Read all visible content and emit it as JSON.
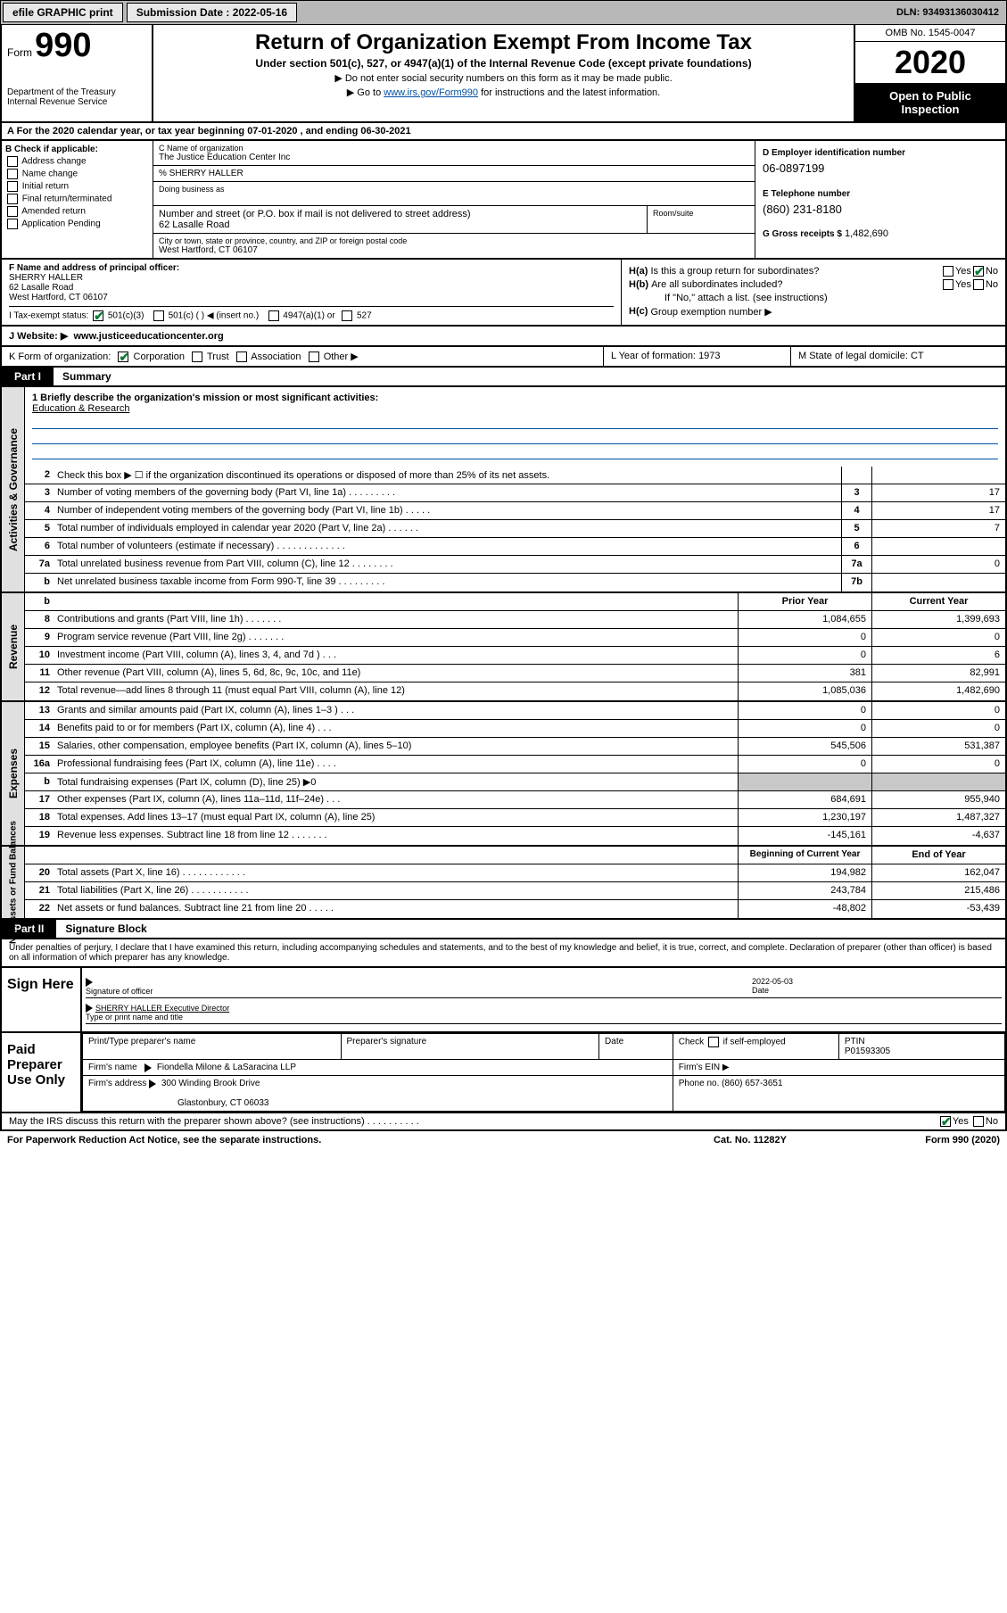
{
  "topbar": {
    "efile": "efile GRAPHIC print",
    "submission_label": "Submission Date : 2022-05-16",
    "dln": "DLN: 93493136030412"
  },
  "header": {
    "form_label": "Form",
    "form_number": "990",
    "dept": "Department of the Treasury\nInternal Revenue Service",
    "title": "Return of Organization Exempt From Income Tax",
    "subtitle": "Under section 501(c), 527, or 4947(a)(1) of the Internal Revenue Code (except private foundations)",
    "note1": "▶ Do not enter social security numbers on this form as it may be made public.",
    "note2_pre": "▶ Go to ",
    "note2_link": "www.irs.gov/Form990",
    "note2_post": " for instructions and the latest information.",
    "omb": "OMB No. 1545-0047",
    "year": "2020",
    "inspection": "Open to Public Inspection"
  },
  "period": "A For the 2020 calendar year, or tax year beginning 07-01-2020    , and ending 06-30-2021",
  "box_b": {
    "label": "B Check if applicable:",
    "items": [
      "Address change",
      "Name change",
      "Initial return",
      "Final return/terminated",
      "Amended return",
      "Application Pending"
    ]
  },
  "box_c": {
    "name_lbl": "C Name of organization",
    "name": "The Justice Education Center Inc",
    "care_of": "% SHERRY HALLER",
    "dba_lbl": "Doing business as",
    "street_lbl": "Number and street (or P.O. box if mail is not delivered to street address)",
    "suite_lbl": "Room/suite",
    "street": "62 Lasalle Road",
    "city_lbl": "City or town, state or province, country, and ZIP or foreign postal code",
    "city": "West Hartford, CT  06107"
  },
  "box_d": {
    "ein_lbl": "D Employer identification number",
    "ein": "06-0897199",
    "phone_lbl": "E Telephone number",
    "phone": "(860) 231-8180",
    "gross_lbl": "G Gross receipts $",
    "gross": "1,482,690"
  },
  "box_f": {
    "lbl": "F Name and address of principal officer:",
    "name": "SHERRY HALLER",
    "addr1": "62 Lasalle Road",
    "addr2": "West Hartford, CT  06107"
  },
  "box_h": {
    "ha": "Is this a group return for subordinates?",
    "hb": "Are all subordinates included?",
    "hb_note": "If \"No,\" attach a list. (see instructions)",
    "hc": "Group exemption number ▶"
  },
  "row_i": {
    "label": "I   Tax-exempt status:",
    "opts": [
      "501(c)(3)",
      "501(c) (  ) ◀ (insert no.)",
      "4947(a)(1) or",
      "527"
    ]
  },
  "row_j": {
    "label": "J   Website: ▶",
    "url": "www.justiceeducationcenter.org"
  },
  "row_k": {
    "form_org": "K Form of organization:",
    "opts": [
      "Corporation",
      "Trust",
      "Association",
      "Other ▶"
    ],
    "year_lbl": "L Year of formation:",
    "year": "1973",
    "state_lbl": "M State of legal domicile:",
    "state": "CT"
  },
  "part1": {
    "num": "Part I",
    "title": "Summary"
  },
  "mission": {
    "q": "1  Briefly describe the organization's mission or most significant activities:",
    "ans": "Education & Research"
  },
  "gov_lines": [
    {
      "n": "2",
      "d": "Check this box ▶ ☐  if the organization discontinued its operations or disposed of more than 25% of its net assets.",
      "c": "",
      "v": ""
    },
    {
      "n": "3",
      "d": "Number of voting members of the governing body (Part VI, line 1a)   .    .    .    .    .    .    .    .    .",
      "c": "3",
      "v": "17"
    },
    {
      "n": "4",
      "d": "Number of independent voting members of the governing body (Part VI, line 1b)   .    .    .    .    .",
      "c": "4",
      "v": "17"
    },
    {
      "n": "5",
      "d": "Total number of individuals employed in calendar year 2020 (Part V, line 2a)   .    .    .    .    .    .",
      "c": "5",
      "v": "7"
    },
    {
      "n": "6",
      "d": "Total number of volunteers (estimate if necessary)    .    .    .    .    .    .    .    .    .    .    .    .    .",
      "c": "6",
      "v": ""
    },
    {
      "n": "7a",
      "d": "Total unrelated business revenue from Part VIII, column (C), line 12   .    .    .    .    .    .    .    .",
      "c": "7a",
      "v": "0"
    },
    {
      "n": "b",
      "d": "Net unrelated business taxable income from Form 990-T, line 39    .    .    .    .    .    .    .    .    .",
      "c": "7b",
      "v": ""
    }
  ],
  "rev_hdr": {
    "py": "Prior Year",
    "cy": "Current Year"
  },
  "rev_lines": [
    {
      "n": "8",
      "d": "Contributions and grants (Part VIII, line 1h)    .    .    .    .    .    .    .",
      "py": "1,084,655",
      "cy": "1,399,693"
    },
    {
      "n": "9",
      "d": "Program service revenue (Part VIII, line 2g)    .    .    .    .    .    .    .",
      "py": "0",
      "cy": "0"
    },
    {
      "n": "10",
      "d": "Investment income (Part VIII, column (A), lines 3, 4, and 7d )    .    .    .",
      "py": "0",
      "cy": "6"
    },
    {
      "n": "11",
      "d": "Other revenue (Part VIII, column (A), lines 5, 6d, 8c, 9c, 10c, and 11e)",
      "py": "381",
      "cy": "82,991"
    },
    {
      "n": "12",
      "d": "Total revenue—add lines 8 through 11 (must equal Part VIII, column (A), line 12)",
      "py": "1,085,036",
      "cy": "1,482,690"
    }
  ],
  "exp_lines": [
    {
      "n": "13",
      "d": "Grants and similar amounts paid (Part IX, column (A), lines 1–3 )    .    .    .",
      "py": "0",
      "cy": "0"
    },
    {
      "n": "14",
      "d": "Benefits paid to or for members (Part IX, column (A), line 4)    .    .    .",
      "py": "0",
      "cy": "0"
    },
    {
      "n": "15",
      "d": "Salaries, other compensation, employee benefits (Part IX, column (A), lines 5–10)",
      "py": "545,506",
      "cy": "531,387"
    },
    {
      "n": "16a",
      "d": "Professional fundraising fees (Part IX, column (A), line 11e)    .    .    .    .",
      "py": "0",
      "cy": "0"
    },
    {
      "n": "b",
      "d": "Total fundraising expenses (Part IX, column (D), line 25) ▶0",
      "py": "grey",
      "cy": "grey"
    },
    {
      "n": "17",
      "d": "Other expenses (Part IX, column (A), lines 11a–11d, 11f–24e)    .    .    .",
      "py": "684,691",
      "cy": "955,940"
    },
    {
      "n": "18",
      "d": "Total expenses. Add lines 13–17 (must equal Part IX, column (A), line 25)",
      "py": "1,230,197",
      "cy": "1,487,327"
    },
    {
      "n": "19",
      "d": "Revenue less expenses. Subtract line 18 from line 12   .    .    .    .    .    .    .",
      "py": "-145,161",
      "cy": "-4,637"
    }
  ],
  "net_hdr": {
    "py": "Beginning of Current Year",
    "cy": "End of Year"
  },
  "net_lines": [
    {
      "n": "20",
      "d": "Total assets (Part X, line 16)    .    .    .    .    .    .    .    .    .    .    .    .",
      "py": "194,982",
      "cy": "162,047"
    },
    {
      "n": "21",
      "d": "Total liabilities (Part X, line 26)   .    .    .    .    .    .    .    .    .    .    .",
      "py": "243,784",
      "cy": "215,486"
    },
    {
      "n": "22",
      "d": "Net assets or fund balances. Subtract line 21 from line 20   .    .    .    .    .",
      "py": "-48,802",
      "cy": "-53,439"
    }
  ],
  "part2": {
    "num": "Part II",
    "title": "Signature Block"
  },
  "sig_decl": "Under penalties of perjury, I declare that I have examined this return, including accompanying schedules and statements, and to the best of my knowledge and belief, it is true, correct, and complete. Declaration of preparer (other than officer) is based on all information of which preparer has any knowledge.",
  "sign_here": "Sign Here",
  "sig_officer_lbl": "Signature of officer",
  "sig_date": "2022-05-03",
  "sig_date_lbl": "Date",
  "sig_name": "SHERRY HALLER  Executive Director",
  "sig_name_lbl": "Type or print name and title",
  "paid_prep": "Paid Preparer Use Only",
  "prep": {
    "h1": "Print/Type preparer's name",
    "h2": "Preparer's signature",
    "h3": "Date",
    "h4_pre": "Check",
    "h4_post": "if self-employed",
    "h5": "PTIN",
    "ptin": "P01593305",
    "firm_lbl": "Firm's name",
    "firm": "Fiondella Milone & LaSaracina LLP",
    "ein_lbl": "Firm's EIN ▶",
    "addr_lbl": "Firm's address",
    "addr1": "300 Winding Brook Drive",
    "addr2": "Glastonbury, CT  06033",
    "phone_lbl": "Phone no.",
    "phone": "(860) 657-3651"
  },
  "irs_discuss": "May the IRS discuss this return with the preparer shown above? (see instructions)    .    .    .    .    .    .    .    .    .    .",
  "footer": {
    "pra": "For Paperwork Reduction Act Notice, see the separate instructions.",
    "cat": "Cat. No. 11282Y",
    "form": "Form 990 (2020)"
  },
  "side": {
    "gov": "Activities & Governance",
    "rev": "Revenue",
    "exp": "Expenses",
    "net": "Net Assets or Fund Balances"
  }
}
